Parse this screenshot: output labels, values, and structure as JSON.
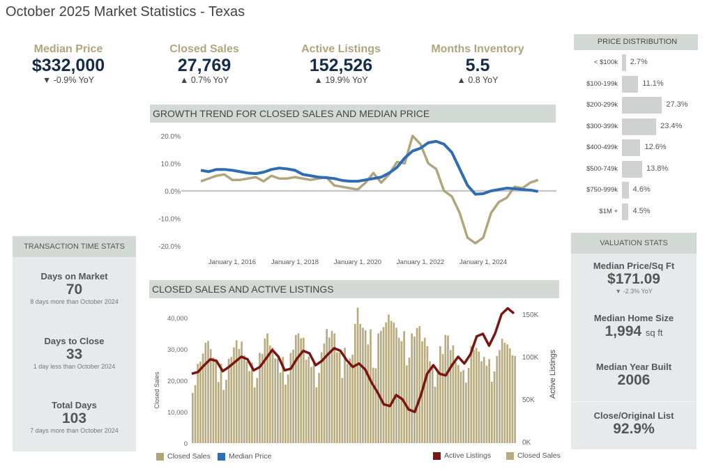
{
  "title": "October 2025 Market Statistics - Texas",
  "kpis": [
    {
      "label": "Median Price",
      "value": "$332,000",
      "change": "▼ -0.9% YoY"
    },
    {
      "label": "Closed Sales",
      "value": "27,769",
      "change": "▲ 0.7% YoY"
    },
    {
      "label": "Active Listings",
      "value": "152,526",
      "change": "▲ 19.9% YoY"
    },
    {
      "label": "Months Inventory",
      "value": "5.5",
      "change": "▲ 0.8 YoY"
    }
  ],
  "price_distribution": {
    "title": "PRICE DISTRIBUTION",
    "rows": [
      {
        "label": "< $100k",
        "value": 2.7,
        "text": "2.7%"
      },
      {
        "label": "$100-199k",
        "value": 11.1,
        "text": "11.1%"
      },
      {
        "label": "$200-299k",
        "value": 27.3,
        "text": "27.3%"
      },
      {
        "label": "$300-399k",
        "value": 23.4,
        "text": "23.4%"
      },
      {
        "label": "$400-499k",
        "value": 12.6,
        "text": "12.6%"
      },
      {
        "label": "$500-749k",
        "value": 13.8,
        "text": "13.8%"
      },
      {
        "label": "$750-999k",
        "value": 4.6,
        "text": "4.6%"
      },
      {
        "label": "$1M +",
        "value": 4.5,
        "text": "4.5%"
      }
    ]
  },
  "transaction": {
    "title": "TRANSACTION TIME STATS",
    "items": [
      {
        "label": "Days on Market",
        "value": "70",
        "note": "8 days more than October 2024"
      },
      {
        "label": "Days to Close",
        "value": "33",
        "note": "1 day less than October 2024"
      },
      {
        "label": "Total Days",
        "value": "103",
        "note": "7 days more than October 2024"
      }
    ]
  },
  "valuation": {
    "title": "VALUATION STATS",
    "ppsf_label": "Median Price/Sq Ft",
    "ppsf_value": "$171.09",
    "ppsf_change": "▼ -2.3% YoY",
    "size_label": "Median Home Size",
    "size_value": "1,994",
    "size_unit": "sq ft",
    "year_label": "Median Year Built",
    "year_value": "2006",
    "ratio_label": "Close/Original List",
    "ratio_value": "92.9%"
  },
  "colors": {
    "gold": "#b1a57e",
    "navy": "#142b4a",
    "blue": "#2e6db4",
    "maroon": "#7a1510",
    "bar": "#b8ab80"
  },
  "chart_data": [
    {
      "type": "line",
      "title": "GROWTH TREND FOR CLOSED SALES AND MEDIAN PRICE",
      "ylim": [
        -20,
        20
      ],
      "y_ticks": [
        "20.0%",
        "10.0%",
        "0.0%",
        "-10.0%",
        "-20.0%"
      ],
      "y_tick_values": [
        20,
        10,
        0,
        -10,
        -20
      ],
      "x_ticks": [
        "January 1, 2016",
        "January 1, 2018",
        "January 1, 2020",
        "January 1, 2022",
        "January 1, 2024"
      ],
      "x_tick_values": [
        2016,
        2018,
        2020,
        2022,
        2024
      ],
      "x_start": 2015,
      "x_step": 0.25,
      "series": [
        {
          "name": "Closed Sales",
          "color": "#b1a57e",
          "values": [
            3.5,
            4.5,
            5.5,
            6,
            4,
            4,
            4.5,
            5,
            3.5,
            5.5,
            4.5,
            4.5,
            5,
            4.5,
            4,
            4.5,
            5,
            2,
            1.5,
            1,
            0.5,
            3,
            6.5,
            3,
            6,
            10.5,
            10,
            20,
            17,
            10,
            8,
            0,
            -2,
            -8,
            -17,
            -19,
            -17,
            -8,
            -4,
            -2.5,
            1.5,
            1,
            3,
            4
          ]
        },
        {
          "name": "Median Price",
          "color": "#2e6db4",
          "values": [
            7.5,
            7,
            7.8,
            7.8,
            7.5,
            7,
            6.5,
            6.3,
            6.8,
            7.8,
            8.3,
            8,
            7.5,
            6,
            5.5,
            5,
            4.8,
            4.5,
            3.8,
            3.5,
            3.5,
            4,
            4.5,
            5,
            6.5,
            8.5,
            12,
            14.5,
            15.5,
            17.5,
            18,
            17,
            14,
            8,
            2,
            -1.2,
            -1,
            0,
            0.5,
            1,
            0.8,
            0.5,
            0.3,
            -0.2
          ]
        }
      ]
    },
    {
      "type": "bar+line",
      "title": "CLOSED SALES AND ACTIVE LISTINGS",
      "ylabel": "Closed Sales",
      "y2label": "Active Listings",
      "ylim": [
        0,
        45000
      ],
      "y_ticks": [
        "0",
        "10,000",
        "20,000",
        "30,000",
        "40,000"
      ],
      "y_tick_values": [
        0,
        10000,
        20000,
        30000,
        40000
      ],
      "y2lim": [
        0,
        160
      ],
      "y2_ticks": [
        "0K",
        "50K",
        "100K",
        "150K"
      ],
      "y2_tick_values": [
        0,
        50,
        100,
        150
      ],
      "bars": {
        "name": "Closed Sales",
        "values": [
          16000,
          18500,
          25300,
          26000,
          28600,
          32000,
          32600,
          30000,
          27300,
          26800,
          19500,
          25300,
          17000,
          20200,
          26900,
          27500,
          30500,
          32800,
          30000,
          32400,
          28000,
          26000,
          23000,
          25700,
          17800,
          20800,
          28800,
          28500,
          33400,
          35000,
          31200,
          30500,
          27000,
          27000,
          22500,
          27500,
          18700,
          21900,
          28800,
          29800,
          34500,
          35000,
          33400,
          33600,
          26600,
          27600,
          24300,
          26000,
          17800,
          22400,
          29000,
          31800,
          36400,
          33700,
          35800,
          35000,
          29000,
          28900,
          20800,
          30400,
          25300,
          27000,
          28200,
          38000,
          43200,
          38000,
          36800,
          36000,
          31500,
          36300,
          24100,
          23900,
          35000,
          35800,
          37000,
          38500,
          41000,
          39000,
          38400,
          36800,
          33600,
          32500,
          35700,
          24800,
          27300,
          35000,
          34000,
          36700,
          37300,
          32500,
          33600,
          30900,
          26100,
          25000,
          18000,
          23300,
          30900,
          28400,
          34500,
          34300,
          29700,
          31200,
          25800,
          24900,
          22800,
          23300,
          19300,
          24000,
          31000,
          29800,
          30400,
          29200,
          26100,
          27500,
          24700,
          26800,
          19600,
          22900,
          27800,
          29700,
          33300,
          32000,
          31500,
          30200,
          28000,
          27800
        ]
      },
      "line": {
        "name": "Active Listings",
        "unit": "K",
        "values": [
          80,
          82,
          90,
          97,
          95,
          83,
          88,
          94,
          100,
          97,
          84,
          88,
          98,
          108,
          100,
          84,
          86,
          98,
          107,
          104,
          90,
          95,
          103,
          110,
          107,
          96,
          88,
          92,
          85,
          70,
          58,
          44,
          42,
          55,
          50,
          38,
          35,
          55,
          80,
          90,
          80,
          78,
          90,
          100,
          92,
          103,
          124,
          127,
          113,
          128,
          150,
          157,
          151
        ]
      }
    }
  ],
  "legend_bottom_left": [
    {
      "label": "Closed Sales",
      "color": "#b1a57e"
    },
    {
      "label": "Median Price",
      "color": "#2e6db4"
    }
  ],
  "legend_bottom_right": [
    {
      "label": "Active Listings",
      "color": "#7a1510"
    },
    {
      "label": "Closed Sales",
      "color": "#b8ab80"
    }
  ]
}
